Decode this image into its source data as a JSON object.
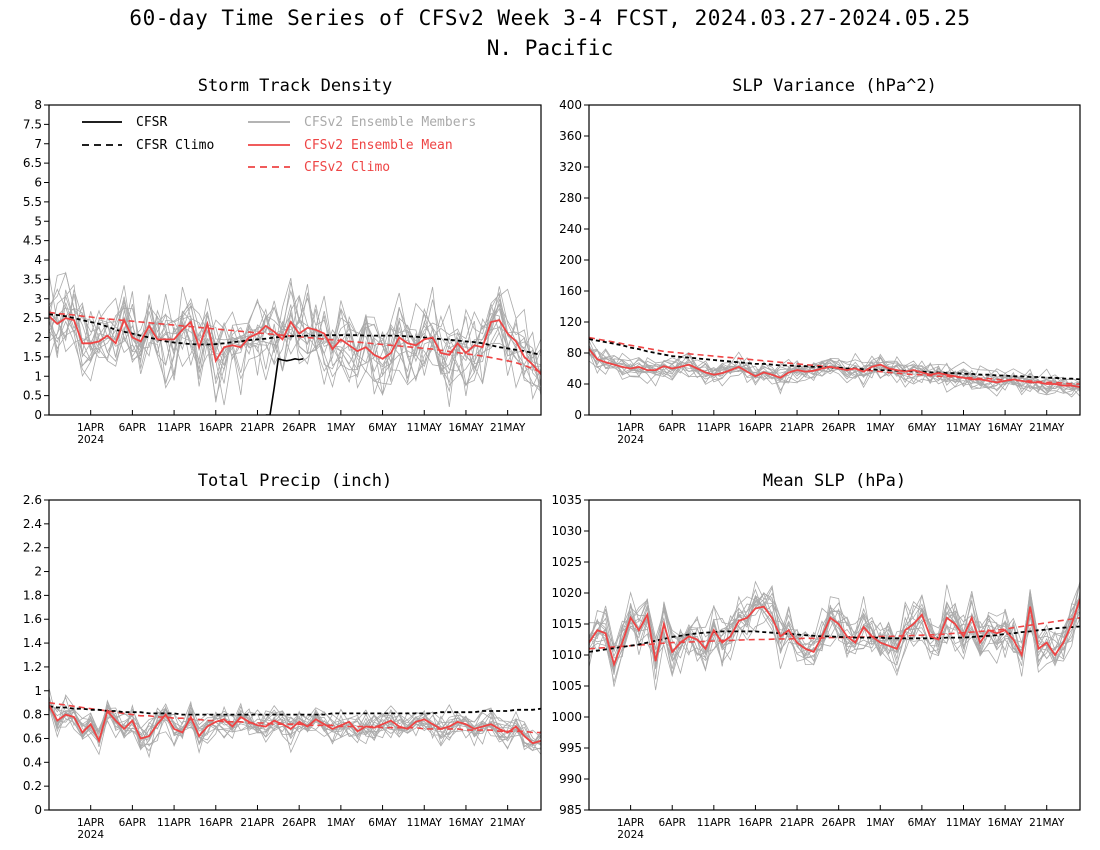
{
  "header": {
    "title": "60-day Time Series of CFSv2 Week 3-4 FCST, 2024.03.27-2024.05.25",
    "region": "N. Pacific"
  },
  "x_axis": {
    "ticks": [
      {
        "day": 5,
        "label": "1APR",
        "sub": "2024"
      },
      {
        "day": 10,
        "label": "6APR"
      },
      {
        "day": 15,
        "label": "11APR"
      },
      {
        "day": 20,
        "label": "16APR"
      },
      {
        "day": 25,
        "label": "21APR"
      },
      {
        "day": 30,
        "label": "26APR"
      },
      {
        "day": 35,
        "label": "1MAY"
      },
      {
        "day": 40,
        "label": "6MAY"
      },
      {
        "day": 45,
        "label": "11MAY"
      },
      {
        "day": 50,
        "label": "16MAY"
      },
      {
        "day": 55,
        "label": "21MAY"
      }
    ]
  },
  "legend": {
    "cfsr": "CFSR",
    "cfsr_climo": "CFSR Climo",
    "members": "CFSv2 Ensemble Members",
    "mean": "CFSv2 Ensemble Mean",
    "cfsv2_climo": "CFSv2 Climo"
  },
  "colors": {
    "cfsr": "#000000",
    "members": "#aaaaaa",
    "mean": "#ee4444",
    "cfsv2_climo": "#ee4444"
  },
  "chart_data": [
    {
      "type": "line",
      "title": "Storm Track Density",
      "ylim": [
        0,
        8
      ],
      "yticks": [
        "0",
        "0.5",
        "1",
        "1.5",
        "2",
        "2.5",
        "3",
        "3.5",
        "4",
        "4.5",
        "5",
        "5.5",
        "6",
        "6.5",
        "7",
        "7.5",
        "8"
      ],
      "member_count": 16,
      "member_spread": 0.8,
      "mean": [
        2.55,
        2.35,
        2.5,
        2.45,
        1.85,
        1.85,
        1.9,
        2.05,
        1.85,
        2.45,
        2.0,
        1.9,
        2.3,
        1.95,
        1.95,
        1.95,
        2.2,
        2.4,
        1.75,
        2.35,
        1.4,
        1.75,
        1.8,
        1.75,
        2.0,
        2.1,
        2.3,
        2.15,
        1.95,
        2.4,
        2.1,
        2.25,
        2.2,
        2.1,
        1.7,
        1.95,
        1.8,
        1.65,
        1.75,
        1.55,
        1.45,
        1.6,
        2.0,
        1.85,
        1.8,
        1.95,
        2.0,
        1.6,
        1.55,
        1.85,
        1.6,
        1.8,
        1.75,
        2.4,
        2.45,
        2.1,
        1.9,
        1.5,
        1.3,
        1.05
      ],
      "cfsr_climo": [
        2.6,
        2.58,
        2.55,
        2.5,
        2.45,
        2.4,
        2.35,
        2.28,
        2.2,
        2.15,
        2.1,
        2.05,
        2.0,
        1.95,
        1.9,
        1.87,
        1.85,
        1.83,
        1.82,
        1.82,
        1.83,
        1.85,
        1.88,
        1.9,
        1.93,
        1.95,
        1.97,
        2.0,
        2.02,
        2.03,
        2.04,
        2.05,
        2.05,
        2.06,
        2.06,
        2.06,
        2.06,
        2.06,
        2.05,
        2.05,
        2.05,
        2.05,
        2.04,
        2.03,
        2.02,
        2.0,
        1.98,
        1.96,
        1.94,
        1.92,
        1.9,
        1.88,
        1.85,
        1.8,
        1.75,
        1.72,
        1.68,
        1.65,
        1.6,
        1.55
      ],
      "cfsv2_climo": [
        2.65,
        2.62,
        2.6,
        2.58,
        2.55,
        2.53,
        2.5,
        2.48,
        2.46,
        2.44,
        2.42,
        2.4,
        2.38,
        2.36,
        2.34,
        2.32,
        2.3,
        2.28,
        2.26,
        2.24,
        2.22,
        2.2,
        2.18,
        2.16,
        2.14,
        2.12,
        2.1,
        2.08,
        2.06,
        2.04,
        2.02,
        2.0,
        1.98,
        1.96,
        1.94,
        1.92,
        1.9,
        1.88,
        1.86,
        1.84,
        1.82,
        1.8,
        1.78,
        1.76,
        1.74,
        1.72,
        1.7,
        1.67,
        1.64,
        1.61,
        1.58,
        1.55,
        1.52,
        1.48,
        1.44,
        1.4,
        1.35,
        1.28,
        1.2,
        1.1
      ],
      "cfsr": {
        "x": [
          26,
          26.5,
          27,
          27.5,
          28,
          28.5,
          29,
          29.5,
          30,
          30.5
        ],
        "y": [
          0,
          0,
          0.7,
          1.45,
          1.42,
          1.4,
          1.42,
          1.45,
          1.43,
          1.45
        ]
      }
    },
    {
      "type": "line",
      "title": "SLP Variance (hPa^2)",
      "ylim": [
        0,
        400
      ],
      "yticks": [
        "0",
        "40",
        "80",
        "120",
        "160",
        "200",
        "240",
        "280",
        "320",
        "360",
        "400"
      ],
      "member_count": 16,
      "member_spread": 12,
      "mean": [
        85,
        72,
        68,
        65,
        62,
        60,
        62,
        58,
        58,
        63,
        60,
        62,
        65,
        60,
        55,
        52,
        54,
        58,
        62,
        56,
        50,
        55,
        52,
        48,
        55,
        58,
        56,
        57,
        60,
        62,
        60,
        58,
        60,
        56,
        62,
        65,
        60,
        58,
        56,
        58,
        55,
        52,
        54,
        52,
        50,
        48,
        46,
        46,
        44,
        42,
        44,
        46,
        44,
        42,
        42,
        40,
        40,
        38,
        38,
        36
      ],
      "cfsv2_climo": [
        100,
        98,
        96,
        94,
        92,
        90,
        88,
        86,
        84,
        82,
        81,
        80,
        79,
        78,
        77,
        76,
        75,
        74,
        73,
        72,
        71,
        70,
        69,
        68,
        67,
        66,
        65,
        64,
        63,
        62,
        61,
        60,
        59,
        58,
        57,
        56,
        55,
        54,
        53,
        52,
        52,
        51,
        50,
        50,
        49,
        48,
        48,
        47,
        47,
        46,
        45,
        45,
        44,
        44,
        43,
        42,
        42,
        41,
        40,
        40
      ],
      "cfsr_climo": [
        98,
        96,
        94,
        92,
        90,
        87,
        85,
        82,
        80,
        78,
        76,
        75,
        74,
        73,
        72,
        71,
        70,
        69,
        68,
        67,
        66,
        66,
        65,
        64,
        64,
        63,
        63,
        62,
        62,
        61,
        61,
        60,
        60,
        59,
        59,
        58,
        58,
        57,
        57,
        56,
        56,
        55,
        55,
        54,
        54,
        53,
        53,
        52,
        52,
        51,
        51,
        50,
        50,
        49,
        49,
        48,
        48,
        47,
        47,
        46
      ]
    },
    {
      "type": "line",
      "title": "Total Precip (inch)",
      "ylim": [
        0,
        2.6
      ],
      "yticks": [
        "0",
        "0.2",
        "0.4",
        "0.6",
        "0.8",
        "1",
        "1.2",
        "1.4",
        "1.6",
        "1.8",
        "2",
        "2.2",
        "2.4",
        "2.6"
      ],
      "member_count": 16,
      "member_spread": 0.1,
      "mean": [
        0.88,
        0.75,
        0.8,
        0.78,
        0.65,
        0.72,
        0.58,
        0.83,
        0.75,
        0.68,
        0.75,
        0.6,
        0.62,
        0.72,
        0.8,
        0.68,
        0.65,
        0.78,
        0.62,
        0.7,
        0.74,
        0.76,
        0.7,
        0.78,
        0.74,
        0.71,
        0.7,
        0.75,
        0.72,
        0.68,
        0.74,
        0.7,
        0.76,
        0.72,
        0.68,
        0.71,
        0.74,
        0.66,
        0.7,
        0.69,
        0.72,
        0.75,
        0.7,
        0.68,
        0.74,
        0.76,
        0.72,
        0.68,
        0.7,
        0.74,
        0.72,
        0.68,
        0.7,
        0.72,
        0.68,
        0.65,
        0.7,
        0.62,
        0.56,
        0.58
      ],
      "cfsv2_climo": [
        0.9,
        0.89,
        0.88,
        0.87,
        0.86,
        0.85,
        0.84,
        0.83,
        0.82,
        0.81,
        0.8,
        0.79,
        0.79,
        0.78,
        0.78,
        0.77,
        0.77,
        0.76,
        0.76,
        0.75,
        0.75,
        0.74,
        0.74,
        0.74,
        0.73,
        0.73,
        0.73,
        0.72,
        0.72,
        0.72,
        0.72,
        0.71,
        0.71,
        0.71,
        0.71,
        0.7,
        0.7,
        0.7,
        0.7,
        0.7,
        0.69,
        0.69,
        0.69,
        0.69,
        0.69,
        0.68,
        0.68,
        0.68,
        0.68,
        0.68,
        0.67,
        0.67,
        0.67,
        0.67,
        0.66,
        0.66,
        0.66,
        0.66,
        0.65,
        0.65
      ],
      "cfsr_climo": [
        0.87,
        0.86,
        0.86,
        0.85,
        0.85,
        0.84,
        0.84,
        0.83,
        0.83,
        0.82,
        0.82,
        0.82,
        0.81,
        0.81,
        0.81,
        0.81,
        0.8,
        0.8,
        0.8,
        0.8,
        0.8,
        0.8,
        0.8,
        0.8,
        0.8,
        0.8,
        0.8,
        0.8,
        0.8,
        0.8,
        0.8,
        0.8,
        0.8,
        0.8,
        0.81,
        0.81,
        0.81,
        0.81,
        0.81,
        0.81,
        0.81,
        0.81,
        0.81,
        0.81,
        0.81,
        0.81,
        0.81,
        0.82,
        0.82,
        0.82,
        0.82,
        0.82,
        0.83,
        0.83,
        0.83,
        0.83,
        0.84,
        0.84,
        0.84,
        0.85
      ]
    },
    {
      "type": "line",
      "title": "Mean SLP (hPa)",
      "ylim": [
        985,
        1035
      ],
      "yticks": [
        "985",
        "990",
        "995",
        "1000",
        "1005",
        "1010",
        "1015",
        "1020",
        "1025",
        "1030",
        "1035"
      ],
      "member_count": 16,
      "member_spread": 3,
      "mean": [
        1012,
        1014,
        1013.5,
        1008.5,
        1012,
        1016,
        1014,
        1016.5,
        1009,
        1015,
        1010.5,
        1012,
        1013,
        1012.5,
        1011,
        1014,
        1012,
        1013,
        1015.5,
        1016,
        1017.5,
        1017.8,
        1016,
        1013,
        1014,
        1012,
        1011,
        1010.5,
        1013,
        1016,
        1015,
        1013,
        1012,
        1014.5,
        1013,
        1012,
        1011.5,
        1011,
        1014,
        1015,
        1016.5,
        1013,
        1012.5,
        1016,
        1015,
        1013,
        1016,
        1012,
        1014,
        1013.5,
        1014,
        1012.5,
        1010,
        1017.8,
        1011,
        1012,
        1010,
        1012,
        1015,
        1019
      ],
      "cfsr_climo": [
        1010.5,
        1010.7,
        1010.9,
        1011.1,
        1011.3,
        1011.5,
        1011.7,
        1012,
        1012.3,
        1012.6,
        1012.9,
        1013.1,
        1013.3,
        1013.5,
        1013.6,
        1013.7,
        1013.8,
        1013.8,
        1013.8,
        1013.8,
        1013.8,
        1013.7,
        1013.6,
        1013.5,
        1013.4,
        1013.3,
        1013.2,
        1013.1,
        1013,
        1013,
        1012.9,
        1012.9,
        1012.8,
        1012.8,
        1012.8,
        1012.8,
        1012.7,
        1012.7,
        1012.7,
        1012.7,
        1012.7,
        1012.7,
        1012.7,
        1012.8,
        1012.8,
        1012.8,
        1012.9,
        1013,
        1013.1,
        1013.2,
        1013.4,
        1013.5,
        1013.7,
        1013.8,
        1014,
        1014.1,
        1014.3,
        1014.4,
        1014.5,
        1014.6
      ],
      "cfsv2_climo": [
        1011,
        1011.1,
        1011.2,
        1011.3,
        1011.4,
        1011.5,
        1011.6,
        1011.7,
        1011.8,
        1011.9,
        1012,
        1012.05,
        1012.1,
        1012.15,
        1012.2,
        1012.25,
        1012.3,
        1012.35,
        1012.4,
        1012.45,
        1012.5,
        1012.5,
        1012.55,
        1012.6,
        1012.6,
        1012.65,
        1012.7,
        1012.7,
        1012.75,
        1012.8,
        1012.8,
        1012.85,
        1012.9,
        1012.9,
        1012.95,
        1013,
        1013,
        1013.05,
        1013.1,
        1013.15,
        1013.2,
        1013.25,
        1013.3,
        1013.4,
        1013.5,
        1013.6,
        1013.7,
        1013.8,
        1013.9,
        1014,
        1014.2,
        1014.4,
        1014.6,
        1014.8,
        1015,
        1015.2,
        1015.4,
        1015.6,
        1015.8,
        1016
      ]
    }
  ]
}
